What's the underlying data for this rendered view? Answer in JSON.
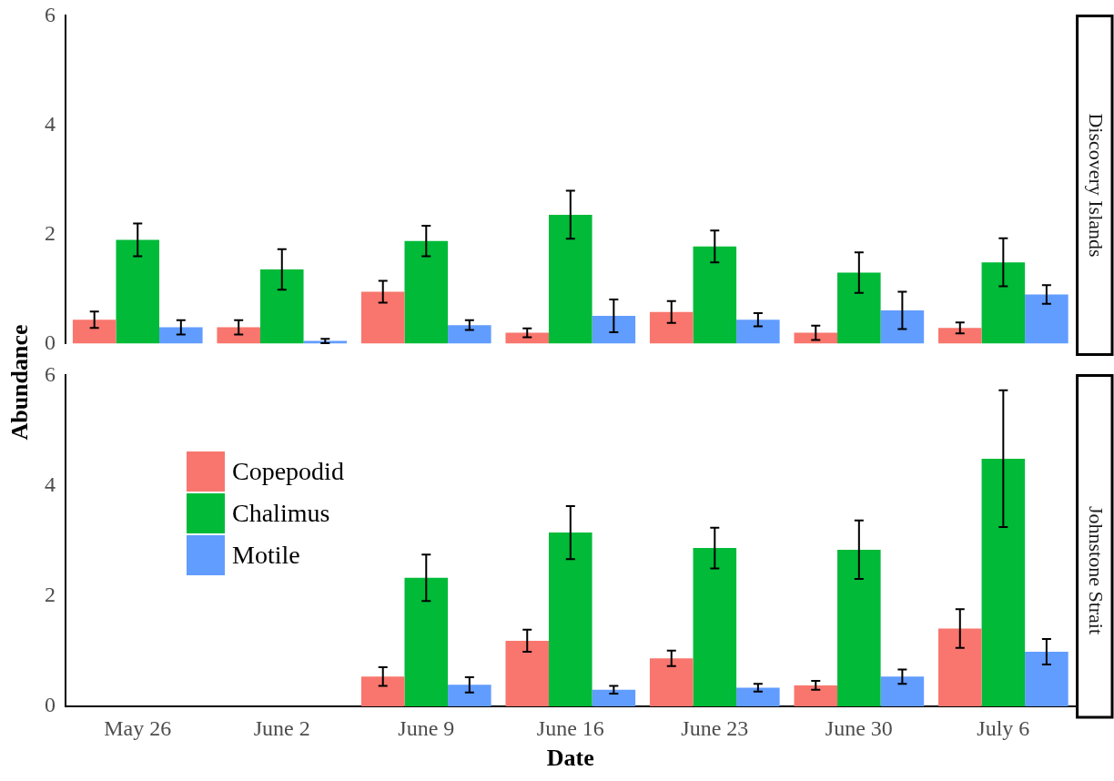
{
  "chart_data": [
    {
      "type": "bar",
      "title": "Discovery Islands",
      "ylabel": "Abundance",
      "categories": [
        null,
        null,
        null,
        null,
        null,
        null,
        null
      ],
      "tick_labels": "y",
      "ylim": [
        0,
        6
      ],
      "yticks": [
        0,
        2,
        4,
        6
      ],
      "grid": false,
      "series": [
        {
          "color": "#f8766d",
          "values": [
            0.44,
            0.3,
            0.95,
            0.2,
            0.58,
            0.2,
            0.29
          ],
          "errors": [
            0.15,
            0.13,
            0.2,
            0.08,
            0.2,
            0.13,
            0.1
          ]
        },
        {
          "color": "#00ba38",
          "values": [
            1.9,
            1.36,
            1.88,
            2.36,
            1.78,
            1.3,
            1.49
          ],
          "errors": [
            0.3,
            0.37,
            0.28,
            0.44,
            0.29,
            0.37,
            0.44
          ]
        },
        {
          "color": "#619cff",
          "values": [
            0.3,
            0.05,
            0.34,
            0.51,
            0.44,
            0.61,
            0.9
          ],
          "errors": [
            0.13,
            0.04,
            0.09,
            0.3,
            0.12,
            0.34,
            0.17
          ]
        }
      ]
    },
    {
      "type": "bar",
      "title": "Johnstone Strait",
      "xlabel": "Date",
      "categories": [
        "May 26",
        "June 2",
        "June 9",
        "June 16",
        "June 23",
        "June 30",
        "July 6"
      ],
      "ylim": [
        0,
        6
      ],
      "yticks": [
        0,
        2,
        4,
        6
      ],
      "grid": false,
      "legend": "left",
      "series": [
        {
          "name": "Copepodid",
          "color": "#f8766d",
          "values": [
            null,
            null,
            0.54,
            1.19,
            0.87,
            0.38,
            1.41
          ],
          "errors": [
            null,
            null,
            0.17,
            0.2,
            0.14,
            0.08,
            0.35
          ]
        },
        {
          "name": "Chalimus",
          "color": "#00ba38",
          "values": [
            null,
            null,
            2.33,
            3.15,
            2.87,
            2.84,
            4.49
          ],
          "errors": [
            null,
            null,
            0.42,
            0.48,
            0.37,
            0.53,
            1.24
          ]
        },
        {
          "name": "Motile",
          "color": "#619cff",
          "values": [
            null,
            null,
            0.39,
            0.3,
            0.34,
            0.54,
            0.99
          ],
          "errors": [
            null,
            null,
            0.14,
            0.07,
            0.07,
            0.13,
            0.23
          ]
        }
      ]
    }
  ]
}
